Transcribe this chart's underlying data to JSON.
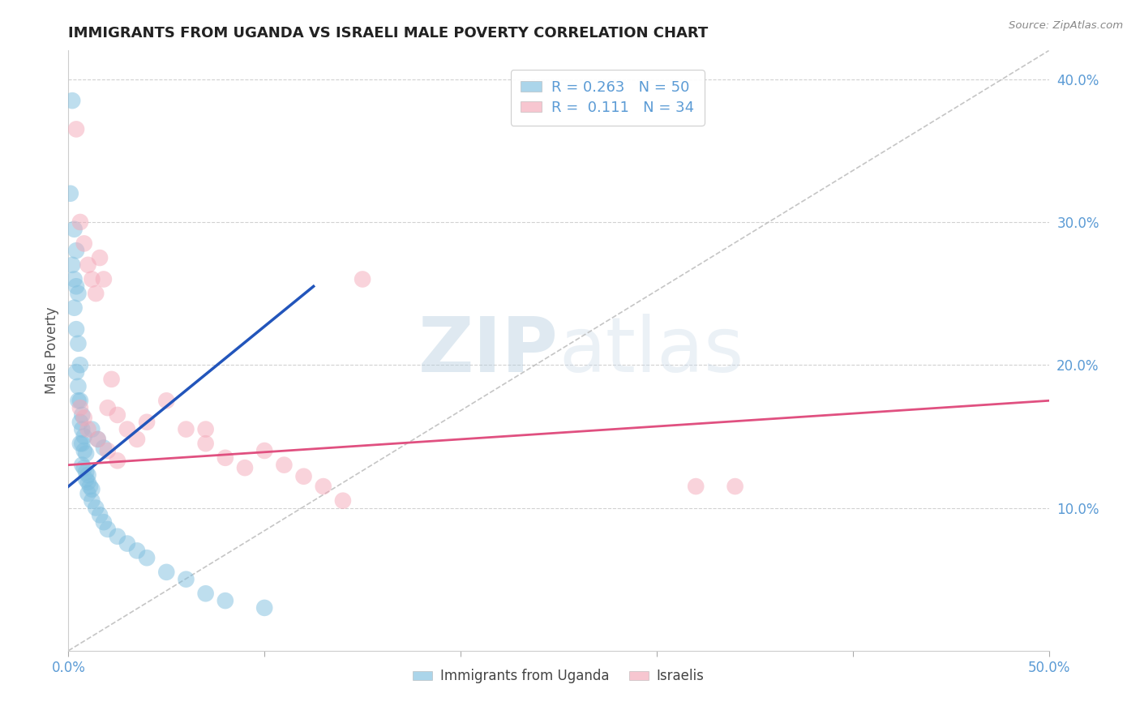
{
  "title": "IMMIGRANTS FROM UGANDA VS ISRAELI MALE POVERTY CORRELATION CHART",
  "source": "Source: ZipAtlas.com",
  "ylabel": "Male Poverty",
  "xlim": [
    0.0,
    0.5
  ],
  "ylim": [
    0.0,
    0.42
  ],
  "x_ticks": [
    0.0,
    0.1,
    0.2,
    0.3,
    0.4,
    0.5
  ],
  "x_tick_labels": [
    "0.0%",
    "",
    "",
    "",
    "",
    "50.0%"
  ],
  "y_ticks": [
    0.1,
    0.2,
    0.3,
    0.4
  ],
  "y_tick_labels": [
    "10.0%",
    "20.0%",
    "30.0%",
    "40.0%"
  ],
  "legend_labels": [
    "Immigrants from Uganda",
    "Israelis"
  ],
  "blue_color": "#7fbfdf",
  "pink_color": "#f4a8b8",
  "blue_line_color": "#2255bb",
  "pink_line_color": "#e05080",
  "watermark_zip": "ZIP",
  "watermark_atlas": "atlas",
  "grid_color": "#cccccc",
  "background_color": "#ffffff",
  "title_color": "#222222",
  "axis_label_color": "#555555",
  "tick_color": "#5b9bd5",
  "blue_line_x": [
    0.0,
    0.125
  ],
  "blue_line_y": [
    0.115,
    0.255
  ],
  "pink_line_x": [
    0.0,
    0.5
  ],
  "pink_line_y": [
    0.13,
    0.175
  ],
  "diag_line_x": [
    0.0,
    0.5
  ],
  "diag_line_y": [
    0.0,
    0.42
  ],
  "blue_x": [
    0.002,
    0.001,
    0.003,
    0.004,
    0.002,
    0.003,
    0.004,
    0.005,
    0.003,
    0.004,
    0.005,
    0.006,
    0.004,
    0.005,
    0.006,
    0.007,
    0.005,
    0.006,
    0.007,
    0.008,
    0.006,
    0.007,
    0.008,
    0.009,
    0.007,
    0.008,
    0.009,
    0.01,
    0.009,
    0.01,
    0.011,
    0.012,
    0.01,
    0.012,
    0.014,
    0.016,
    0.018,
    0.02,
    0.025,
    0.03,
    0.035,
    0.04,
    0.05,
    0.06,
    0.07,
    0.08,
    0.012,
    0.015,
    0.018,
    0.1
  ],
  "blue_y": [
    0.385,
    0.32,
    0.295,
    0.28,
    0.27,
    0.26,
    0.255,
    0.25,
    0.24,
    0.225,
    0.215,
    0.2,
    0.195,
    0.185,
    0.175,
    0.165,
    0.175,
    0.16,
    0.155,
    0.15,
    0.145,
    0.145,
    0.14,
    0.138,
    0.13,
    0.128,
    0.125,
    0.123,
    0.12,
    0.118,
    0.115,
    0.113,
    0.11,
    0.105,
    0.1,
    0.095,
    0.09,
    0.085,
    0.08,
    0.075,
    0.07,
    0.065,
    0.055,
    0.05,
    0.04,
    0.035,
    0.155,
    0.148,
    0.142,
    0.03
  ],
  "pink_x": [
    0.004,
    0.006,
    0.008,
    0.01,
    0.012,
    0.014,
    0.016,
    0.018,
    0.02,
    0.022,
    0.025,
    0.03,
    0.035,
    0.04,
    0.05,
    0.06,
    0.07,
    0.08,
    0.09,
    0.1,
    0.11,
    0.12,
    0.13,
    0.14,
    0.32,
    0.34,
    0.006,
    0.008,
    0.01,
    0.015,
    0.02,
    0.025,
    0.07,
    0.15
  ],
  "pink_y": [
    0.365,
    0.3,
    0.285,
    0.27,
    0.26,
    0.25,
    0.275,
    0.26,
    0.17,
    0.19,
    0.165,
    0.155,
    0.148,
    0.16,
    0.175,
    0.155,
    0.145,
    0.135,
    0.128,
    0.14,
    0.13,
    0.122,
    0.115,
    0.105,
    0.115,
    0.115,
    0.17,
    0.163,
    0.155,
    0.148,
    0.14,
    0.133,
    0.155,
    0.26
  ]
}
